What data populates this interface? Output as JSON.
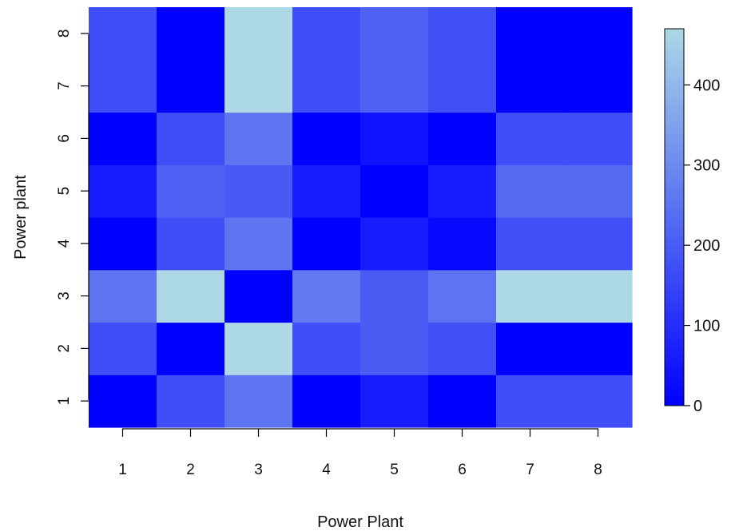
{
  "chart_data": {
    "type": "heatmap",
    "xlabel": "Power Plant",
    "ylabel": "Power plant",
    "x_categories": [
      "1",
      "2",
      "3",
      "4",
      "5",
      "6",
      "7",
      "8"
    ],
    "y_categories": [
      "1",
      "2",
      "3",
      "4",
      "5",
      "6",
      "7",
      "8"
    ],
    "values": [
      [
        0,
        170,
        255,
        0,
        60,
        0,
        170,
        170
      ],
      [
        170,
        0,
        470,
        170,
        200,
        175,
        0,
        0
      ],
      [
        255,
        470,
        0,
        265,
        200,
        250,
        470,
        470
      ],
      [
        0,
        170,
        255,
        0,
        60,
        20,
        175,
        175
      ],
      [
        60,
        210,
        195,
        60,
        0,
        60,
        230,
        230
      ],
      [
        0,
        170,
        255,
        0,
        40,
        0,
        170,
        170
      ],
      [
        170,
        0,
        470,
        170,
        210,
        175,
        0,
        0
      ],
      [
        170,
        0,
        470,
        170,
        210,
        175,
        0,
        0
      ]
    ],
    "colorscale": {
      "min": 0,
      "max": 470,
      "low_color": "#0000ff",
      "high_color": "#add8e6",
      "ticks": [
        0,
        100,
        200,
        300,
        400
      ]
    },
    "grid": false,
    "legend": "right"
  }
}
